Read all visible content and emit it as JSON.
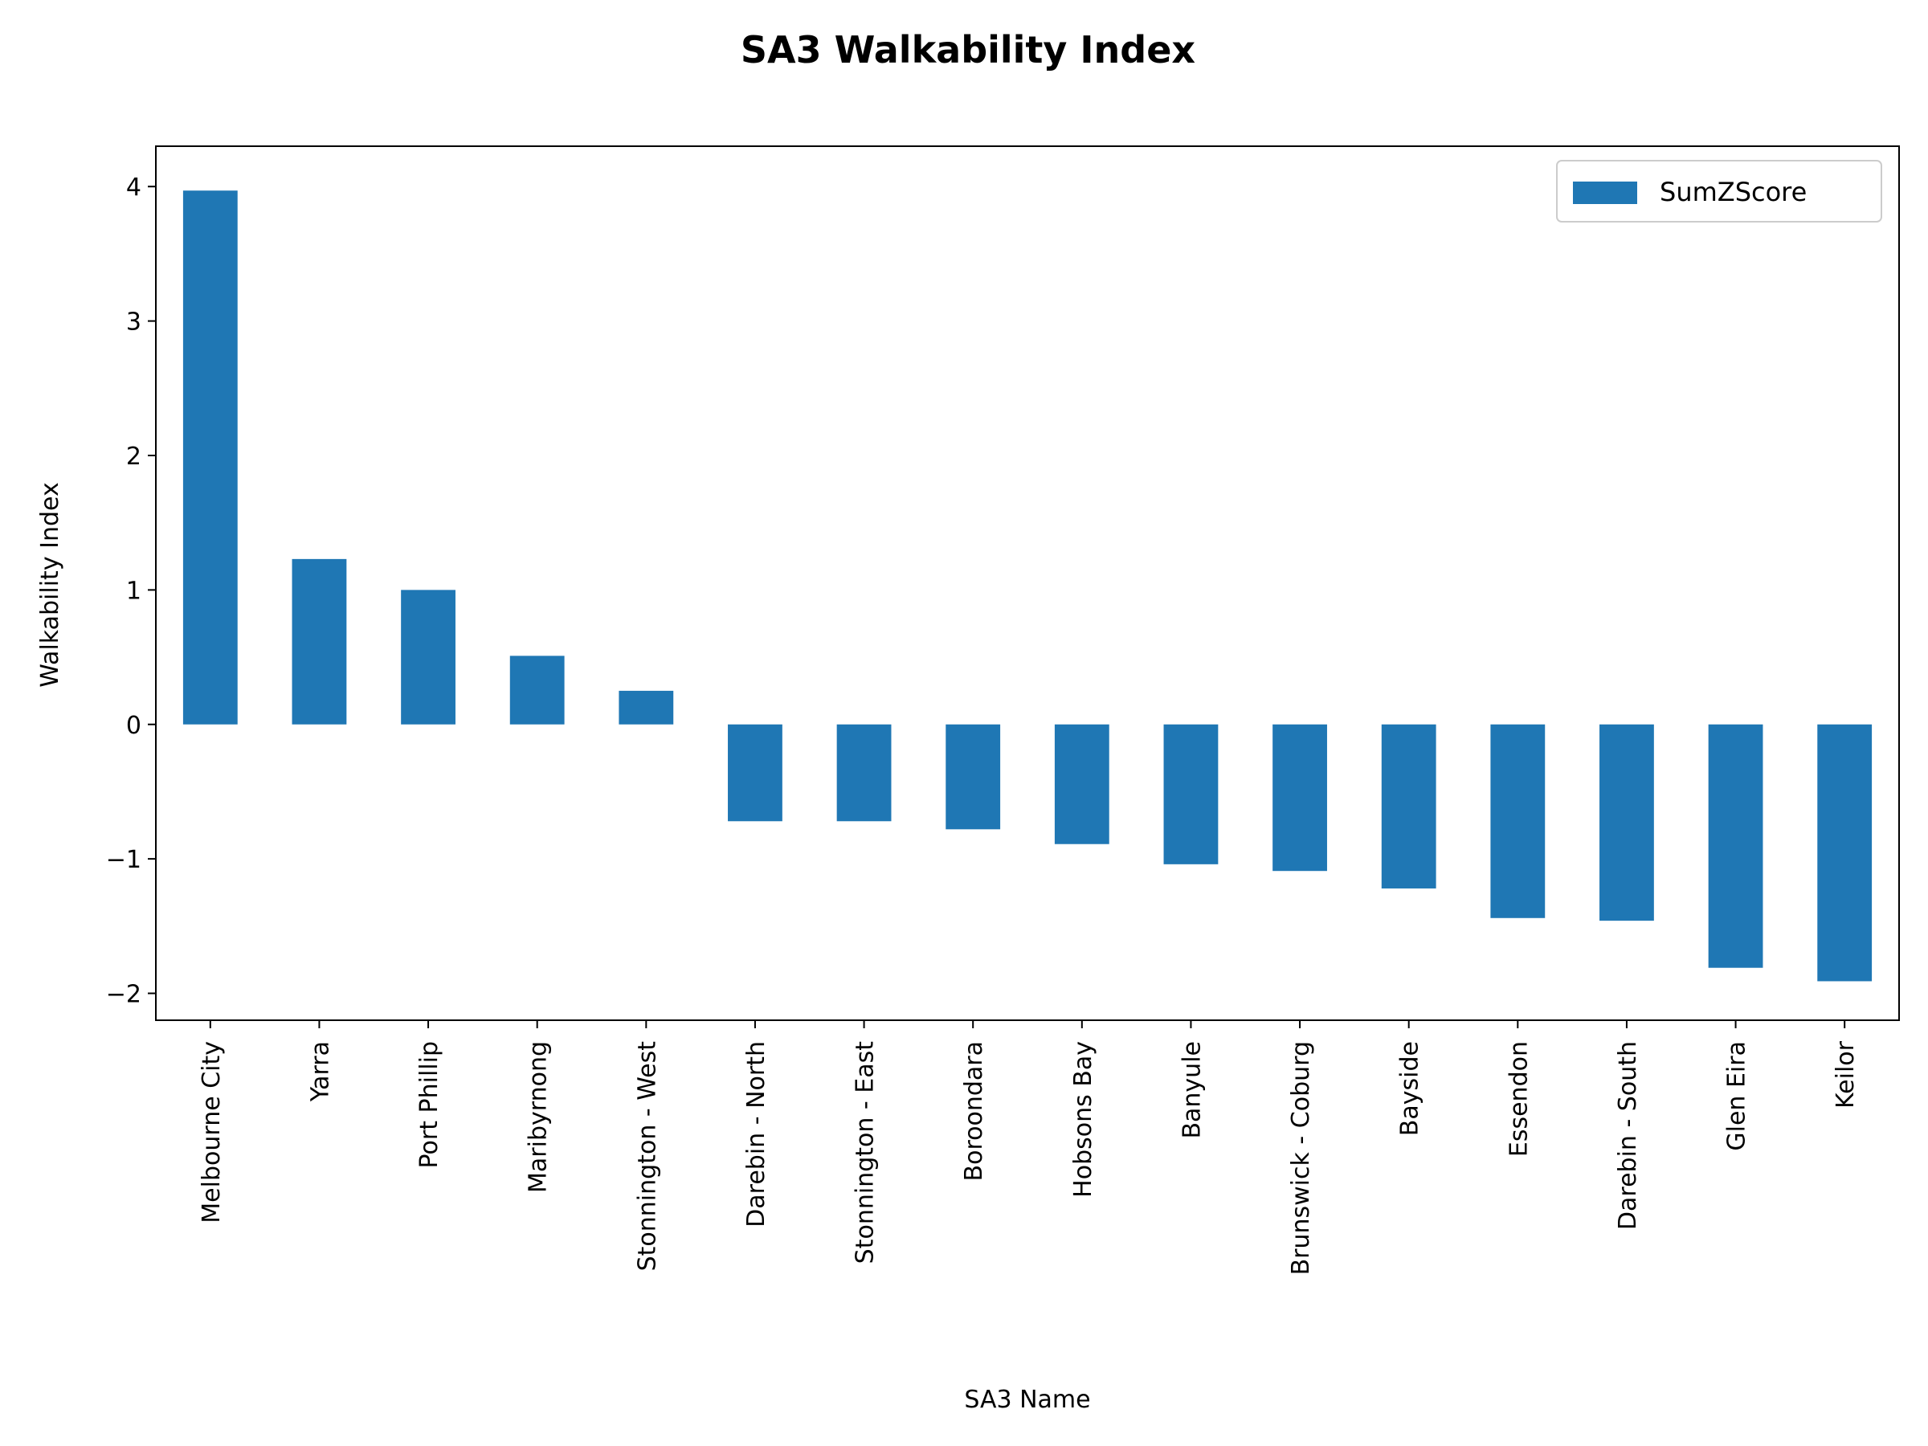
{
  "chart_data": {
    "type": "bar",
    "title": "SA3 Walkability Index",
    "xlabel": "SA3 Name",
    "ylabel": "Walkability Index",
    "categories": [
      "Melbourne City",
      "Yarra",
      "Port Phillip",
      "Maribyrnong",
      "Stonnington - West",
      "Darebin - North",
      "Stonnington - East",
      "Boroondara",
      "Hobsons Bay",
      "Banyule",
      "Brunswick - Coburg",
      "Bayside",
      "Essendon",
      "Darebin - South",
      "Glen Eira",
      "Keilor"
    ],
    "series": [
      {
        "name": "SumZScore",
        "color": "#1f77b4",
        "values": [
          3.97,
          1.23,
          1.0,
          0.51,
          0.25,
          -0.72,
          -0.72,
          -0.78,
          -0.89,
          -1.04,
          -1.09,
          -1.22,
          -1.44,
          -1.46,
          -1.81,
          -1.91
        ]
      }
    ],
    "ylim": [
      -2.2,
      4.3
    ],
    "yticks": [
      -2,
      -1,
      0,
      1,
      2,
      3,
      4
    ],
    "ytick_labels": [
      "−2",
      "−1",
      "0",
      "1",
      "2",
      "3",
      "4"
    ],
    "grid": false,
    "legend_position": "top-right"
  }
}
